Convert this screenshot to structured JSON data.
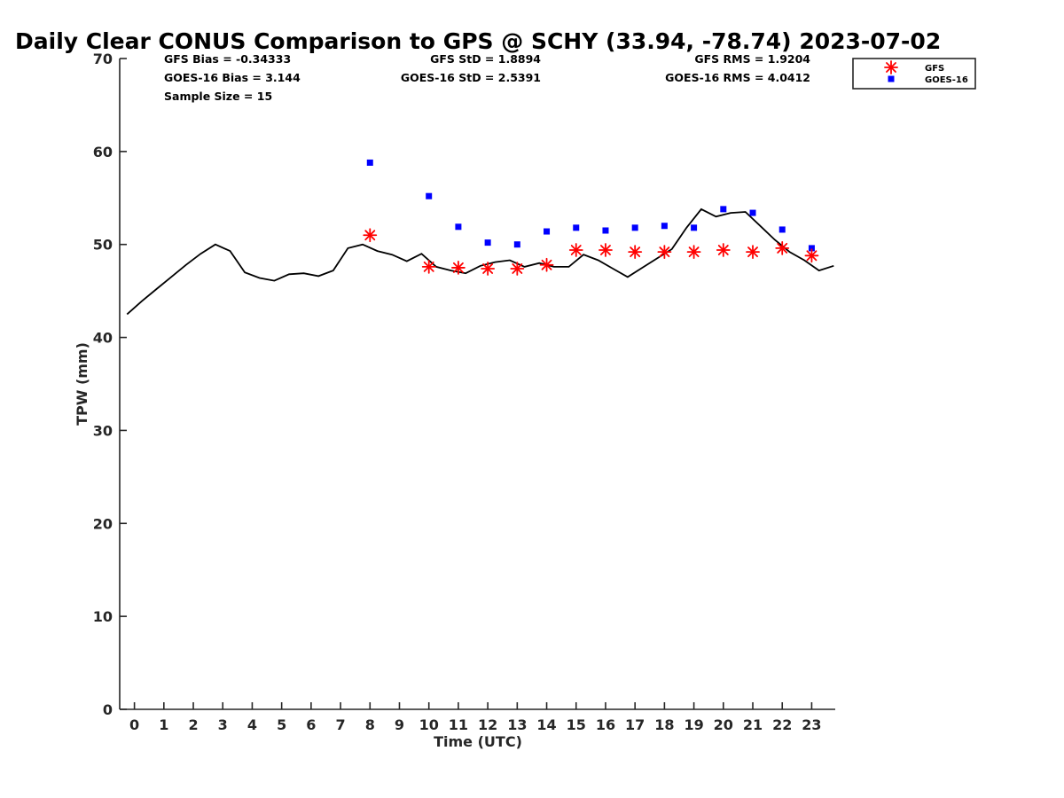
{
  "chart_data": {
    "type": "line",
    "title": "Daily Clear CONUS Comparison to GPS @ SCHY (33.94, -78.74) 2023-07-02",
    "xlabel": "Time (UTC)",
    "ylabel": "TPW (mm)",
    "xlim": [
      -0.5,
      23.8
    ],
    "ylim": [
      0,
      70
    ],
    "xticks": [
      0,
      1,
      2,
      3,
      4,
      5,
      6,
      7,
      8,
      9,
      10,
      11,
      12,
      13,
      14,
      15,
      16,
      17,
      18,
      19,
      20,
      21,
      22,
      23
    ],
    "yticks": [
      0,
      10,
      20,
      30,
      40,
      50,
      60,
      70
    ],
    "grid": false,
    "legend_position": "top-right",
    "stats": {
      "gfs_bias": "GFS Bias = -0.34333",
      "goes_bias": "GOES-16 Bias = 3.144",
      "sample_size": "Sample Size = 15",
      "gfs_std": "GFS StD = 1.8894",
      "goes_std": "GOES-16 StD = 2.5391",
      "gfs_rms": "GFS RMS = 1.9204",
      "goes_rms": "GOES-16 RMS = 4.0412"
    },
    "gps_line": {
      "color": "#000000",
      "x": [
        -0.25,
        0.25,
        0.75,
        1.25,
        1.75,
        2.25,
        2.75,
        3.25,
        3.75,
        4.25,
        4.75,
        5.25,
        5.75,
        6.25,
        6.75,
        7.25,
        7.75,
        8.25,
        8.75,
        9.25,
        9.75,
        10.25,
        10.75,
        11.25,
        11.75,
        12.25,
        12.75,
        13.25,
        13.75,
        14.25,
        14.75,
        15.25,
        15.75,
        16.25,
        16.75,
        17.25,
        17.75,
        18.25,
        18.75,
        19.25,
        19.75,
        20.25,
        20.75,
        21.25,
        21.75,
        22.25,
        22.75,
        23.25,
        23.75
      ],
      "y": [
        42.5,
        43.9,
        45.2,
        46.5,
        47.8,
        49.0,
        50.0,
        49.3,
        47.0,
        46.4,
        46.1,
        46.8,
        46.9,
        46.6,
        47.2,
        49.6,
        50.0,
        49.3,
        48.9,
        48.2,
        49.0,
        47.6,
        47.2,
        46.9,
        47.7,
        48.1,
        48.3,
        47.6,
        48.0,
        47.6,
        47.6,
        48.9,
        48.3,
        47.4,
        46.5,
        47.5,
        48.5,
        49.5,
        51.8,
        53.8,
        53.0,
        53.4,
        53.5,
        52.0,
        50.5,
        49.2,
        48.3,
        47.2,
        47.7
      ]
    },
    "series": [
      {
        "name": "GFS",
        "marker": "asterisk",
        "color": "#ff0000",
        "x": [
          8,
          10,
          11,
          12,
          13,
          14,
          15,
          16,
          17,
          18,
          19,
          20,
          21,
          22,
          23
        ],
        "y": [
          51.0,
          47.6,
          47.5,
          47.4,
          47.4,
          47.8,
          49.4,
          49.4,
          49.2,
          49.2,
          49.2,
          49.4,
          49.2,
          49.6,
          48.8
        ]
      },
      {
        "name": "GOES-16",
        "marker": "square",
        "color": "#0000ff",
        "x": [
          8,
          10,
          11,
          12,
          13,
          14,
          15,
          16,
          17,
          18,
          19,
          20,
          21,
          22,
          23
        ],
        "y": [
          58.8,
          55.2,
          51.9,
          50.2,
          50.0,
          51.4,
          51.8,
          51.5,
          51.8,
          52.0,
          51.8,
          53.8,
          53.4,
          51.6,
          49.6
        ]
      }
    ]
  }
}
